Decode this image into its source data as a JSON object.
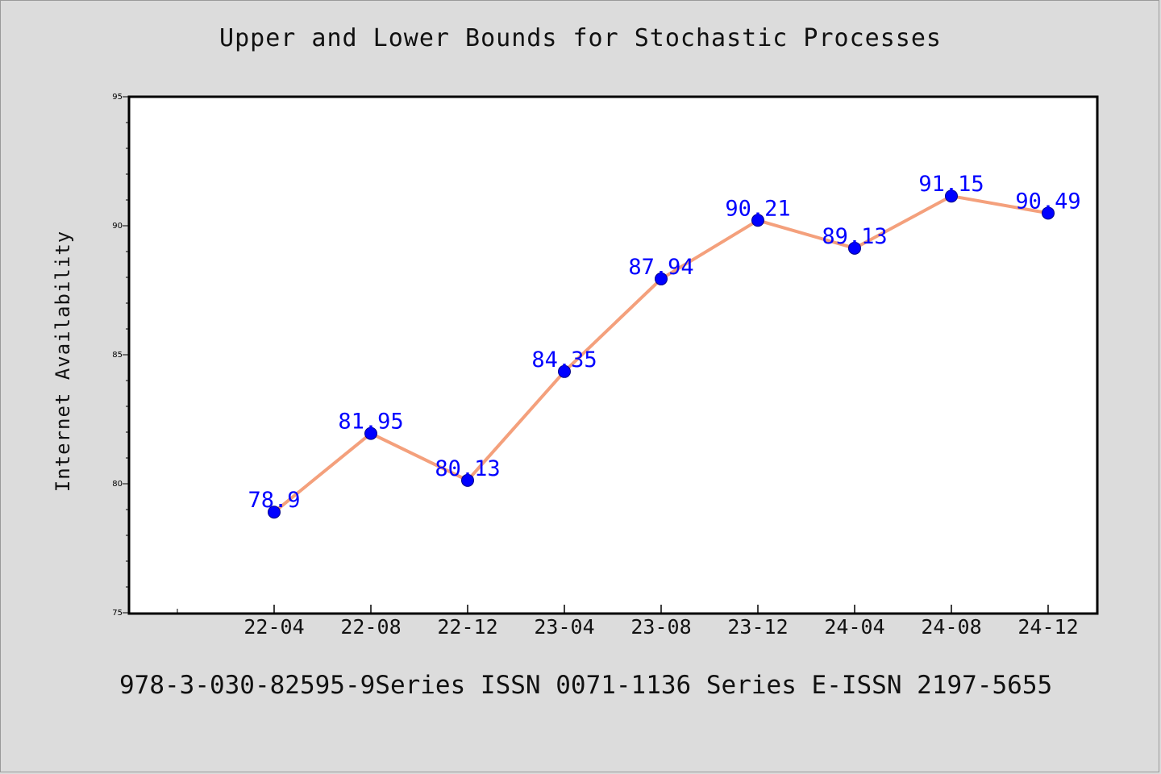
{
  "chart_data": {
    "type": "line",
    "title": "Upper and Lower Bounds for Stochastic Processes",
    "xlabel": "",
    "ylabel": "Internet Availability",
    "categories": [
      "22-04",
      "22-08",
      "22-12",
      "23-04",
      "23-08",
      "23-12",
      "24-04",
      "24-08",
      "24-12"
    ],
    "series": [
      {
        "values": [
          78.9,
          81.95,
          80.13,
          84.35,
          87.94,
          90.21,
          89.13,
          91.15,
          90.49
        ],
        "data_labels": [
          "78.9",
          "81.95",
          "80.13",
          "84.35",
          "87.94",
          "90.21",
          "89.13",
          "91.15",
          "90.49"
        ],
        "line_color": "#f4a07c",
        "marker_color": "#0000ff"
      }
    ],
    "ylim": [
      75,
      95
    ],
    "yticks": [
      "75",
      "80",
      "85",
      "90",
      "95"
    ],
    "grid": false,
    "legend": "none"
  },
  "footer": "978-3-030-82595-9Series ISSN 0071-1136 Series E-ISSN 2197-5655",
  "colors": {
    "background": "#dcdcdc",
    "plot_background": "#ffffff"
  }
}
